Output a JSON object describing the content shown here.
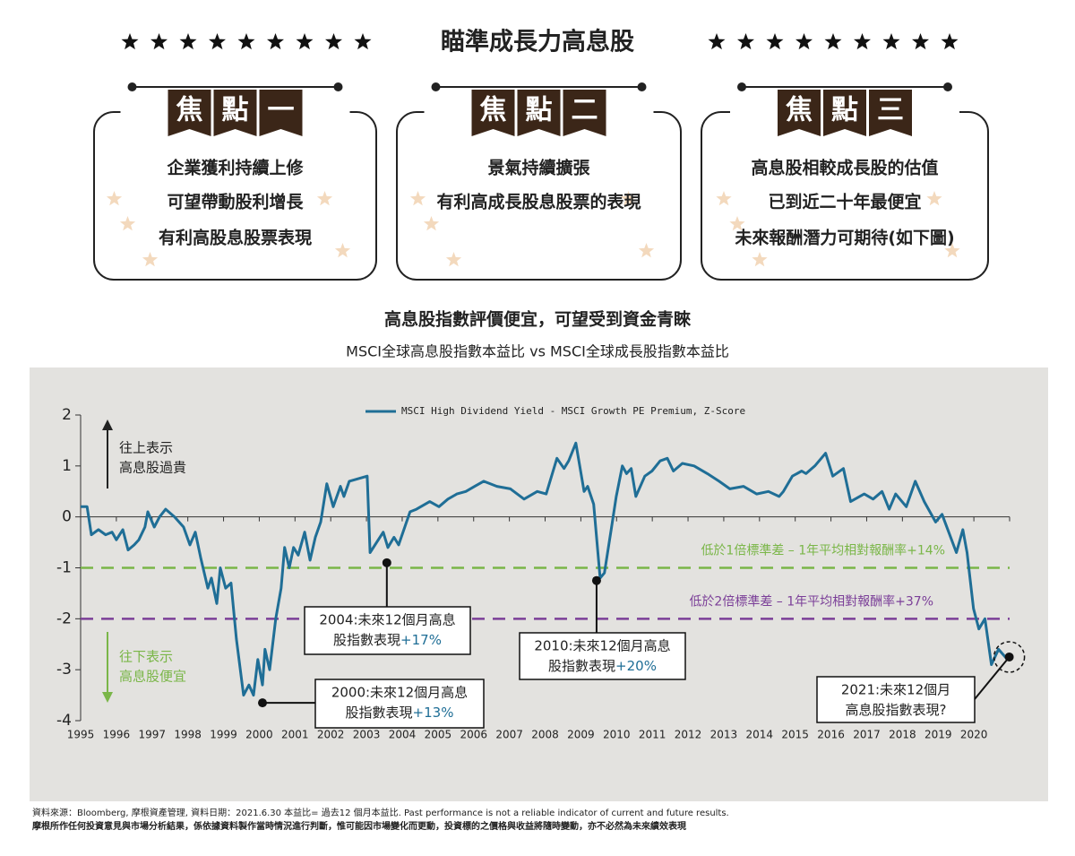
{
  "header": {
    "title": "瞄準成長力高息股"
  },
  "focus": [
    {
      "tag": [
        "焦",
        "點",
        "一"
      ],
      "lines": [
        "企業獲利持續上修",
        "可望帶動股利增長",
        "有利高股息股票表現"
      ]
    },
    {
      "tag": [
        "焦",
        "點",
        "二"
      ],
      "lines": [
        "景氣持續擴張",
        "有利高成長股息股票的表現"
      ]
    },
    {
      "tag": [
        "焦",
        "點",
        "三"
      ],
      "lines": [
        "高息股相較成長股的估值",
        "已到近二十年最便宜",
        "未來報酬潛力可期待(如下圖)"
      ]
    }
  ],
  "chart_data": {
    "type": "line",
    "title": "高息股指數評價便宜，可望受到資金青睞",
    "subtitle": "MSCI全球高息股指數本益比 vs MSCI全球成長股指數本益比",
    "x": [
      1995.0,
      1995.18,
      1995.3,
      1995.5,
      1995.7,
      1995.88,
      1996.0,
      1996.18,
      1996.33,
      1996.5,
      1996.63,
      1996.8,
      1996.88,
      1997.06,
      1997.21,
      1997.38,
      1997.63,
      1997.88,
      1998.06,
      1998.21,
      1998.36,
      1998.56,
      1998.66,
      1998.81,
      1998.91,
      1999.06,
      1999.21,
      1999.36,
      1999.56,
      1999.71,
      1999.84,
      1999.96,
      2000.09,
      2000.16,
      2000.29,
      2000.46,
      2000.61,
      2000.71,
      2000.84,
      2000.96,
      2001.09,
      2001.27,
      2001.42,
      2001.57,
      2001.72,
      2001.89,
      2002.07,
      2002.27,
      2002.37,
      2002.52,
      2003.02,
      2003.1,
      2003.47,
      2003.6,
      2003.77,
      2003.9,
      2004.22,
      2004.4,
      2004.77,
      2005.03,
      2005.28,
      2005.53,
      2005.78,
      2006.03,
      2006.28,
      2006.65,
      2007.03,
      2007.41,
      2007.78,
      2008.03,
      2008.33,
      2008.53,
      2008.66,
      2008.86,
      2009.09,
      2009.19,
      2009.36,
      2009.54,
      2009.66,
      2009.86,
      2009.99,
      2010.16,
      2010.28,
      2010.41,
      2010.54,
      2010.79,
      2010.99,
      2011.22,
      2011.42,
      2011.59,
      2011.84,
      2012.17,
      2012.54,
      2012.87,
      2013.17,
      2013.55,
      2013.92,
      2014.25,
      2014.55,
      2014.67,
      2014.92,
      2015.18,
      2015.3,
      2015.55,
      2015.85,
      2016.05,
      2016.35,
      2016.55,
      2016.93,
      2017.18,
      2017.43,
      2017.63,
      2017.81,
      2018.11,
      2018.36,
      2018.61,
      2018.93,
      2019.11,
      2019.51,
      2019.69,
      2019.81,
      2019.99,
      2020.14,
      2020.31,
      2020.49,
      2020.69,
      2020.94
    ],
    "series": [
      {
        "name": "MSCI High Dividend Yield - MSCI Growth PE Premium, Z-Score",
        "color": "#1f6e96",
        "values": [
          0.2,
          0.2,
          -0.35,
          -0.25,
          -0.35,
          -0.3,
          -0.45,
          -0.25,
          -0.65,
          -0.55,
          -0.45,
          -0.2,
          0.1,
          -0.2,
          0.0,
          0.15,
          0.0,
          -0.2,
          -0.55,
          -0.3,
          -0.8,
          -1.4,
          -1.2,
          -1.7,
          -1.0,
          -1.4,
          -1.3,
          -2.4,
          -3.5,
          -3.3,
          -3.5,
          -2.8,
          -3.3,
          -2.6,
          -3.0,
          -2.0,
          -1.4,
          -0.6,
          -1.0,
          -0.6,
          -0.75,
          -0.3,
          -0.85,
          -0.4,
          -0.1,
          0.65,
          0.2,
          0.6,
          0.4,
          0.7,
          0.8,
          -0.7,
          -0.3,
          -0.6,
          -0.4,
          -0.55,
          0.1,
          0.15,
          0.3,
          0.2,
          0.35,
          0.45,
          0.5,
          0.6,
          0.7,
          0.6,
          0.55,
          0.35,
          0.5,
          0.45,
          1.15,
          0.95,
          1.1,
          1.45,
          0.5,
          0.6,
          0.25,
          -1.2,
          -1.1,
          -0.2,
          0.4,
          1.0,
          0.85,
          0.95,
          0.4,
          0.8,
          0.9,
          1.1,
          1.15,
          0.9,
          1.05,
          1.0,
          0.85,
          0.7,
          0.55,
          0.6,
          0.45,
          0.5,
          0.4,
          0.5,
          0.8,
          0.9,
          0.85,
          1.0,
          1.25,
          0.8,
          0.95,
          0.3,
          0.45,
          0.35,
          0.5,
          0.15,
          0.45,
          0.2,
          0.7,
          0.3,
          -0.1,
          0.05,
          -0.7,
          -0.25,
          -0.7,
          -1.8,
          -2.2,
          -2.0,
          -2.9,
          -2.6,
          -2.8
        ]
      }
    ],
    "xlim": [
      1995,
      2021
    ],
    "xticks": [
      1995,
      1996,
      1997,
      1998,
      1999,
      2000,
      2001,
      2002,
      2003,
      2004,
      2005,
      2006,
      2007,
      2008,
      2009,
      2010,
      2011,
      2012,
      2013,
      2014,
      2015,
      2016,
      2017,
      2018,
      2019,
      2020
    ],
    "ylim": [
      -4,
      2
    ],
    "yticks": [
      -4,
      -3,
      -2,
      -1,
      0,
      1,
      2
    ],
    "reference_lines": [
      {
        "value": -1,
        "label": "低於1倍標準差  –  1年平均相對報酬率+14%",
        "color": "#7ab648"
      },
      {
        "value": -2,
        "label": "低於2倍標準差  –  1年平均相對報酬率+37%",
        "color": "#7b3f98"
      }
    ],
    "up_note": {
      "lines": [
        "往上表示",
        "高息股過貴"
      ],
      "color": "#222222"
    },
    "down_note": {
      "lines": [
        "往下表示",
        "高息股便宜"
      ],
      "color": "#7ab648"
    },
    "annotations": [
      {
        "x": 2003.57,
        "y": -0.9,
        "lines": [
          "2004:未來12個月高息",
          "股指數表現"
        ],
        "highlight": "+17%"
      },
      {
        "x": 2000.09,
        "y": -3.65,
        "lines": [
          "2000:未來12個月高息",
          "股指數表現"
        ],
        "highlight": "+13%"
      },
      {
        "x": 2009.44,
        "y": -1.25,
        "lines": [
          "2010:未來12個月高息",
          "股指數表現"
        ],
        "highlight": "+20%"
      },
      {
        "x": 2020.99,
        "y": -2.75,
        "lines": [
          "2021:未來12個月",
          "高息股指數表現?"
        ]
      }
    ],
    "highlight_color": "#1f6e96"
  },
  "footer": {
    "source": "資料來源：Bloomberg, 摩根資產管理, 資料日期：2021.6.30 本益比= 過去12 個月本益比. Past performance is not a reliable indicator of current and future results.",
    "disclaimer": "摩根所作任何投資意見與市場分析結果，係依據資料製作當時情況進行判斷，惟可能因市場變化而更動，投資標的之價格與收益將隨時變動，亦不必然為未來績效表現"
  }
}
